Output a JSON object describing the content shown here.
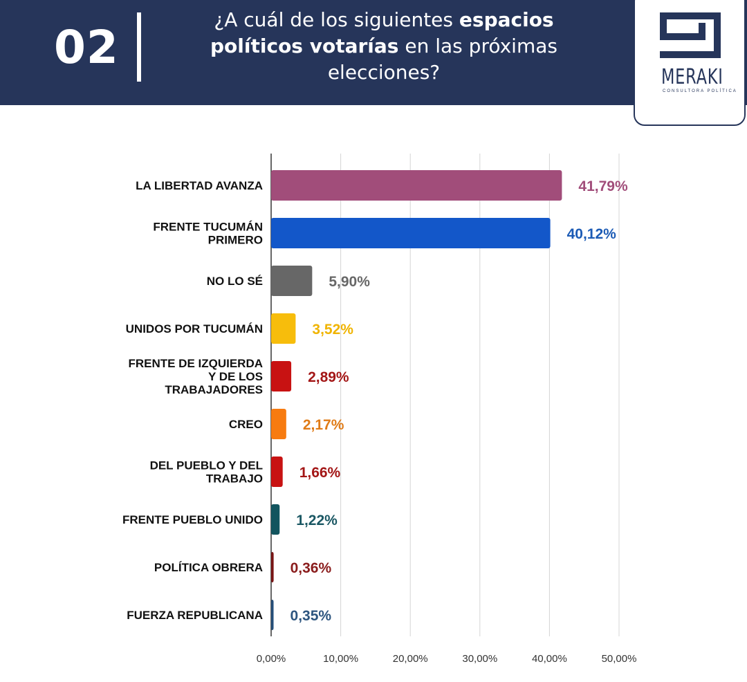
{
  "header": {
    "number": "02",
    "question_pre": "¿A cuál de los siguientes ",
    "question_bold1": "espacios",
    "question_bold2": "políticos votarías",
    "question_post": " en las próximas elecciones?",
    "logo_text": "MERAKI",
    "logo_subtitle": "CONSULTORA POLÍTICA"
  },
  "chart_data": {
    "type": "bar",
    "orientation": "horizontal",
    "categories": [
      "LA LIBERTAD AVANZA",
      "FRENTE TUCUMÁN PRIMERO",
      "NO LO SÉ",
      "UNIDOS POR TUCUMÁN",
      "FRENTE DE IZQUIERDA Y DE LOS TRABAJADORES",
      "CREO",
      "DEL PUEBLO Y DEL TRABAJO",
      "FRENTE PUEBLO UNIDO",
      "POLÍTICA OBRERA",
      "FUERZA REPUBLICANA"
    ],
    "category_lines": [
      [
        "LA LIBERTAD AVANZA"
      ],
      [
        "FRENTE TUCUMÁN",
        "PRIMERO"
      ],
      [
        "NO LO SÉ"
      ],
      [
        "UNIDOS POR TUCUMÁN"
      ],
      [
        "FRENTE DE IZQUIERDA",
        "Y DE LOS",
        "TRABAJADORES"
      ],
      [
        "CREO"
      ],
      [
        "DEL PUEBLO Y DEL",
        "TRABAJO"
      ],
      [
        "FRENTE PUEBLO UNIDO"
      ],
      [
        "POLÍTICA OBRERA"
      ],
      [
        "FUERZA REPUBLICANA"
      ]
    ],
    "values": [
      41.79,
      40.12,
      5.9,
      3.52,
      2.89,
      2.17,
      1.66,
      1.22,
      0.36,
      0.35
    ],
    "value_labels": [
      "41,79%",
      "40,12%",
      "5,90%",
      "3,52%",
      "2,89%",
      "2,17%",
      "1,66%",
      "1,22%",
      "0,36%",
      "0,35%"
    ],
    "colors": [
      "#a14d7a",
      "#1357c9",
      "#676767",
      "#f7bd0c",
      "#c81212",
      "#f77b10",
      "#c81212",
      "#12545e",
      "#7a1515",
      "#264f7a"
    ],
    "label_colors": [
      "#a14d7a",
      "#1c5bb5",
      "#676767",
      "#f0b400",
      "#a31616",
      "#e07b16",
      "#a31616",
      "#1a5763",
      "#8a1c1c",
      "#2d557f"
    ],
    "xlim": [
      0,
      50
    ],
    "xticks": [
      0,
      10,
      20,
      30,
      40,
      50
    ],
    "xtick_labels": [
      "0,00%",
      "10,00%",
      "20,00%",
      "30,00%",
      "40,00%",
      "50,00%"
    ],
    "grid": true
  }
}
